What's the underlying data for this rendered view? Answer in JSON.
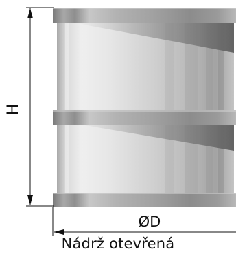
{
  "dimensions": {
    "height_label": "H",
    "diameter_label": "ØD"
  },
  "caption": "Nádrž otevřená",
  "colors": {
    "stroke": "#111111",
    "body_light": "#e9e9e9",
    "body_mid": "#c8c8c8",
    "body_dark": "#8a8a8a",
    "band_dark": "#7d7d7d",
    "band_light": "#bdbdbd",
    "seam_shadow": "#6e6e6e"
  }
}
